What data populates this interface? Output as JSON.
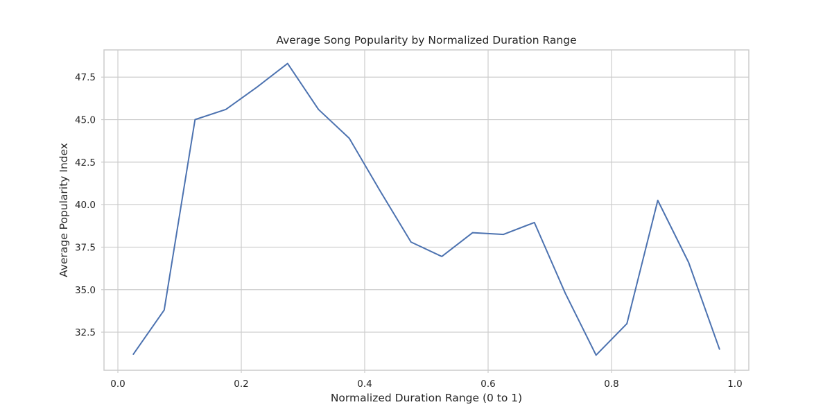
{
  "chart_data": {
    "type": "line",
    "title": "Average Song Popularity by Normalized Duration Range",
    "xlabel": "Normalized Duration Range (0 to 1)",
    "ylabel": "Average Popularity Index",
    "xlim": [
      -0.0225,
      1.0225
    ],
    "ylim": [
      30.26,
      49.1
    ],
    "xticks": [
      0.0,
      0.2,
      0.4,
      0.6,
      0.8,
      1.0
    ],
    "xtick_labels": [
      "0.0",
      "0.2",
      "0.4",
      "0.6",
      "0.8",
      "1.0"
    ],
    "yticks": [
      32.5,
      35.0,
      37.5,
      40.0,
      42.5,
      45.0,
      47.5
    ],
    "ytick_labels": [
      "32.5",
      "35.0",
      "37.5",
      "40.0",
      "42.5",
      "45.0",
      "47.5"
    ],
    "grid": true,
    "series": [
      {
        "color": "#4c72b0",
        "x": [
          0.025,
          0.075,
          0.125,
          0.175,
          0.225,
          0.275,
          0.325,
          0.375,
          0.425,
          0.475,
          0.525,
          0.575,
          0.625,
          0.675,
          0.725,
          0.775,
          0.825,
          0.875,
          0.925,
          0.975
        ],
        "values": [
          31.2,
          33.8,
          45.0,
          45.6,
          46.9,
          48.3,
          45.6,
          43.9,
          40.8,
          37.8,
          36.95,
          38.35,
          38.25,
          38.95,
          34.8,
          31.15,
          33.0,
          40.25,
          36.6,
          31.5
        ]
      }
    ]
  }
}
